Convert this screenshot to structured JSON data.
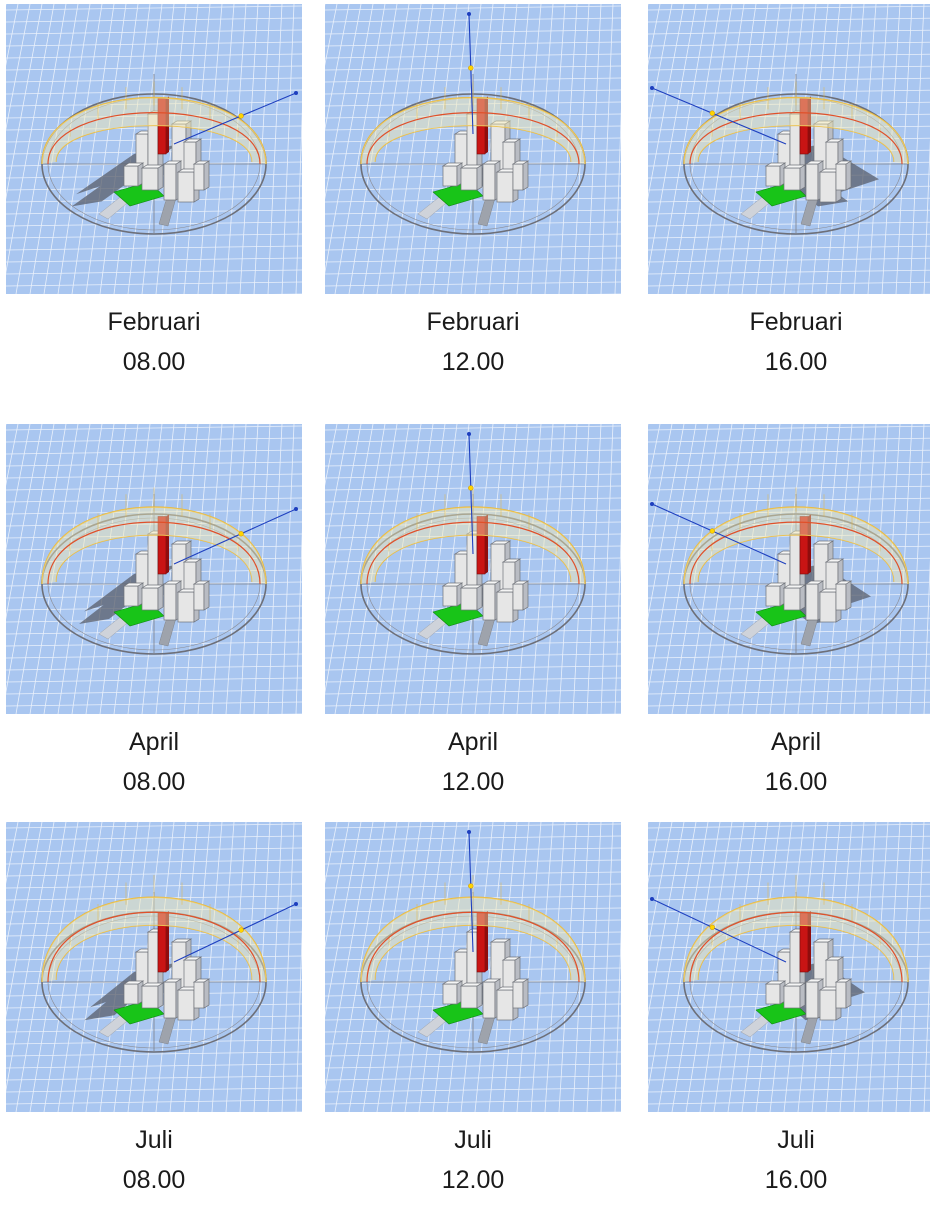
{
  "panels": [
    {
      "month": "Februari",
      "time": "08.00",
      "sun": "morning",
      "arc_height": 0.55,
      "rod_height": 0.55
    },
    {
      "month": "Februari",
      "time": "12.00",
      "sun": "noon",
      "arc_height": 0.55,
      "rod_height": 0.55
    },
    {
      "month": "Februari",
      "time": "16.00",
      "sun": "evening",
      "arc_height": 0.55,
      "rod_height": 0.55
    },
    {
      "month": "April",
      "time": "08.00",
      "sun": "morning",
      "arc_height": 0.75,
      "rod_height": 0.75
    },
    {
      "month": "April",
      "time": "12.00",
      "sun": "noon",
      "arc_height": 0.75,
      "rod_height": 0.75
    },
    {
      "month": "April",
      "time": "16.00",
      "sun": "evening",
      "arc_height": 0.75,
      "rod_height": 0.75
    },
    {
      "month": "Juli",
      "time": "08.00",
      "sun": "morning",
      "arc_height": 0.9,
      "rod_height": 0.9
    },
    {
      "month": "Juli",
      "time": "12.00",
      "sun": "noon",
      "arc_height": 0.9,
      "rod_height": 0.9
    },
    {
      "month": "Juli",
      "time": "16.00",
      "sun": "evening",
      "arc_height": 0.9,
      "rod_height": 0.9
    }
  ],
  "colors": {
    "ground": "#a9c6f0",
    "grid": "#ffffff",
    "dome": "#e9b83a",
    "sun_path": "#e0502a",
    "sun_ray": "#1e3fbf",
    "tower": "#c91414",
    "plot": "#18c418",
    "building": "#e6e6e6",
    "shadow": "#5a5f6b"
  }
}
